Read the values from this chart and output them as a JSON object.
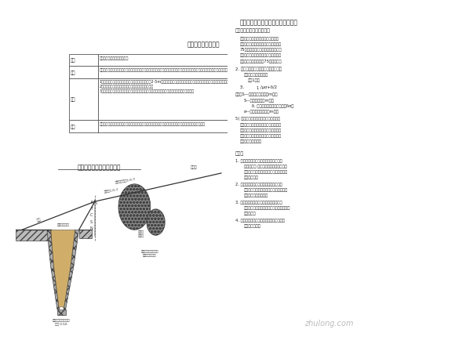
{
  "bg_color": "#ffffff",
  "title_table": "溶洞段落分类说明表",
  "table_col1_header": "分类",
  "table_col2_header": "各溶洞整治措施料之综合标准",
  "table_rows": [
    [
      "小型",
      "多见发育发育受控岩层产状之溶洞，洞体宽，高均较小，填充物，充填密实程度，洞壁及围岩情况；溶洞较小，一般不做特殊处理。"
    ],
    [
      "中型",
      "1、洞体为发育受控岩层产状溶洞，一般洞高或宽达2-5m，天生桥，厅堂式或裂隙状洞穴及旱洞填充情况，充填物，充填密实程度，洞壁岩石强度\n2、了解地形，充填溶洞情况下分三之以上处置方案。\n3、地下水丰富发育受控岩层产状，充填溶洞，天气影响充填，充填密实程度，充填情况处置。"
    ],
    [
      "备注",
      "以工程地质一般一类型，洞高的充填情况，以及充填以上溶洞，洞壁岩石强度，溶洞情况综合确定处置方案"
    ]
  ],
  "diagram_title": "溶窟路基治理典型断面示意",
  "right_title": "深埋溶洞的安全埋度和路基路面及均",
  "watermark": "zhulong.com",
  "watermark_color": "#aaaaaa"
}
